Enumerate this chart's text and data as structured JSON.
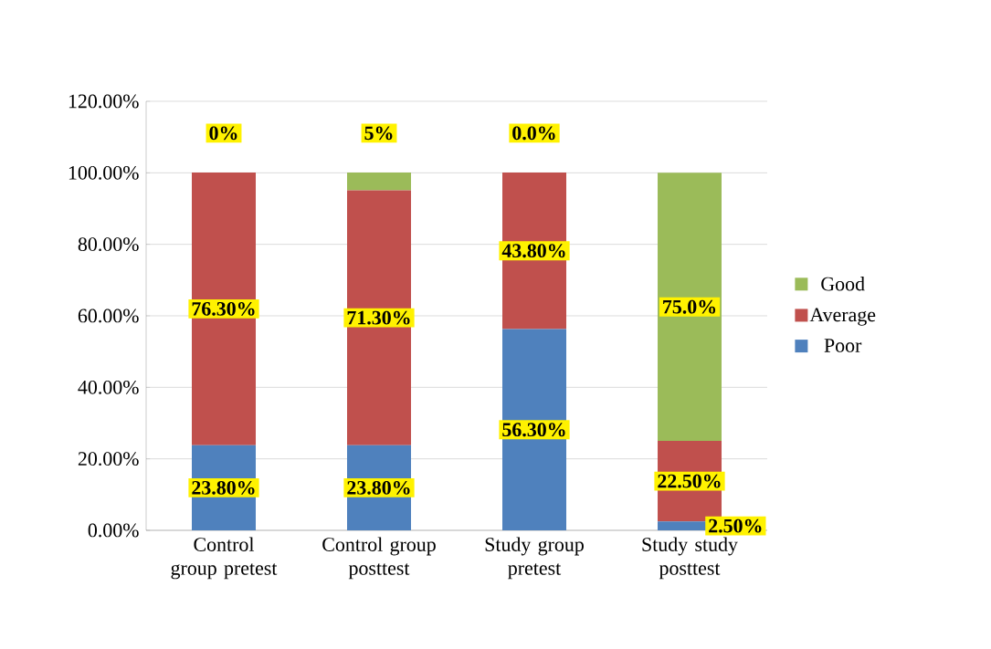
{
  "chart_data": {
    "type": "bar",
    "stacked": true,
    "categories": [
      "Control group pretest",
      "Control group posttest",
      "Study group pretest",
      "Study study posttest"
    ],
    "series": [
      {
        "name": "Poor",
        "color": "#4f81bd",
        "values": [
          23.8,
          23.8,
          56.3,
          2.5
        ],
        "value_labels": [
          "23.80%",
          "23.80%",
          "56.30%",
          "2.50%"
        ]
      },
      {
        "name": "Average",
        "color": "#c0504d",
        "values": [
          76.3,
          71.3,
          43.8,
          22.5
        ],
        "value_labels": [
          "76.30%",
          "71.30%",
          "43.80%",
          "22.50%"
        ]
      },
      {
        "name": "Good",
        "color": "#9bbb59",
        "values": [
          0,
          5,
          0,
          75.0
        ],
        "value_labels": [
          "0%",
          "5%",
          "0.0%",
          "75.0%"
        ]
      }
    ],
    "ylim": [
      0,
      120
    ],
    "yticks": [
      {
        "value": 0,
        "label": "0.00%"
      },
      {
        "value": 20,
        "label": "20.00%"
      },
      {
        "value": 40,
        "label": "40.00%"
      },
      {
        "value": 60,
        "label": "60.00%"
      },
      {
        "value": 80,
        "label": "80.00%"
      },
      {
        "value": 100,
        "label": "100.00%"
      },
      {
        "value": 120,
        "label": "120.00%"
      }
    ],
    "grid": "y",
    "legend": "right"
  }
}
